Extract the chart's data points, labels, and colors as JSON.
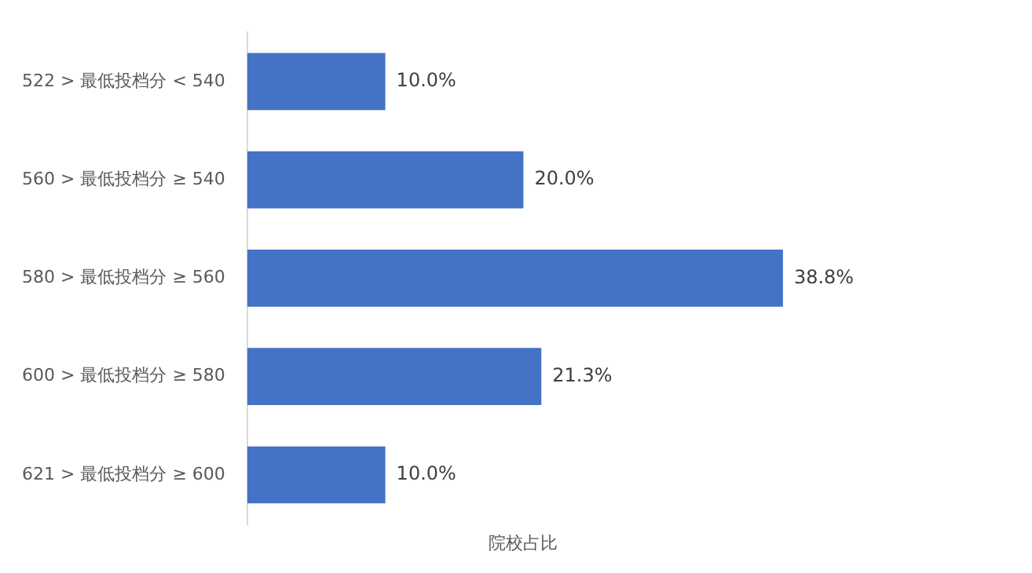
{
  "chart_data": {
    "type": "bar",
    "orientation": "horizontal",
    "xlabel": "院校占比",
    "categories": [
      "522 > 最低投档分 < 540",
      "560 > 最低投档分 ≥ 540",
      "580 > 最低投档分 ≥ 560",
      "600 > 最低投档分 ≥ 580",
      "621 > 最低投档分 ≥ 600"
    ],
    "values": [
      10.0,
      20.0,
      38.8,
      21.3,
      10.0
    ],
    "value_labels": [
      "10.0%",
      "20.0%",
      "38.8%",
      "21.3%",
      "10.0%"
    ],
    "color": "#4472c4",
    "tick_labels": "y",
    "grid": false,
    "legend": false
  }
}
